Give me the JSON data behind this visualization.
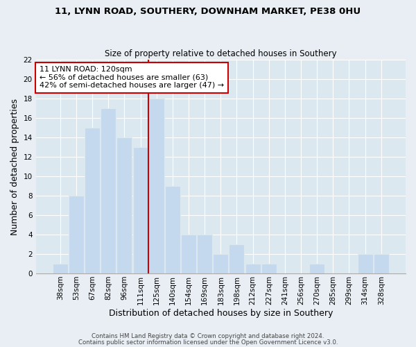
{
  "title_line1": "11, LYNN ROAD, SOUTHERY, DOWNHAM MARKET, PE38 0HU",
  "title_line2": "Size of property relative to detached houses in Southery",
  "xlabel": "Distribution of detached houses by size in Southery",
  "ylabel": "Number of detached properties",
  "bar_labels": [
    "38sqm",
    "53sqm",
    "67sqm",
    "82sqm",
    "96sqm",
    "111sqm",
    "125sqm",
    "140sqm",
    "154sqm",
    "169sqm",
    "183sqm",
    "198sqm",
    "212sqm",
    "227sqm",
    "241sqm",
    "256sqm",
    "270sqm",
    "285sqm",
    "299sqm",
    "314sqm",
    "328sqm"
  ],
  "bar_values": [
    1,
    8,
    15,
    17,
    14,
    13,
    18,
    9,
    4,
    4,
    2,
    3,
    1,
    1,
    0,
    0,
    1,
    0,
    0,
    2,
    2
  ],
  "bar_color": "#c5d9ee",
  "highlight_bar_edge_color": "#cc0000",
  "annotation_text": "11 LYNN ROAD: 120sqm\n← 56% of detached houses are smaller (63)\n42% of semi-detached houses are larger (47) →",
  "annotation_box_edge_color": "#cc0000",
  "annotation_box_face_color": "#ffffff",
  "red_line_bar_index": 5,
  "ylim": [
    0,
    22
  ],
  "yticks": [
    0,
    2,
    4,
    6,
    8,
    10,
    12,
    14,
    16,
    18,
    20,
    22
  ],
  "footer_line1": "Contains HM Land Registry data © Crown copyright and database right 2024.",
  "footer_line2": "Contains public sector information licensed under the Open Government Licence v3.0.",
  "background_color": "#e8eef4",
  "plot_bg_color": "#dce8f0",
  "grid_color": "#ffffff",
  "title_fontsize": 9.5,
  "subtitle_fontsize": 8.5,
  "tick_fontsize": 7.5,
  "axis_label_fontsize": 9
}
